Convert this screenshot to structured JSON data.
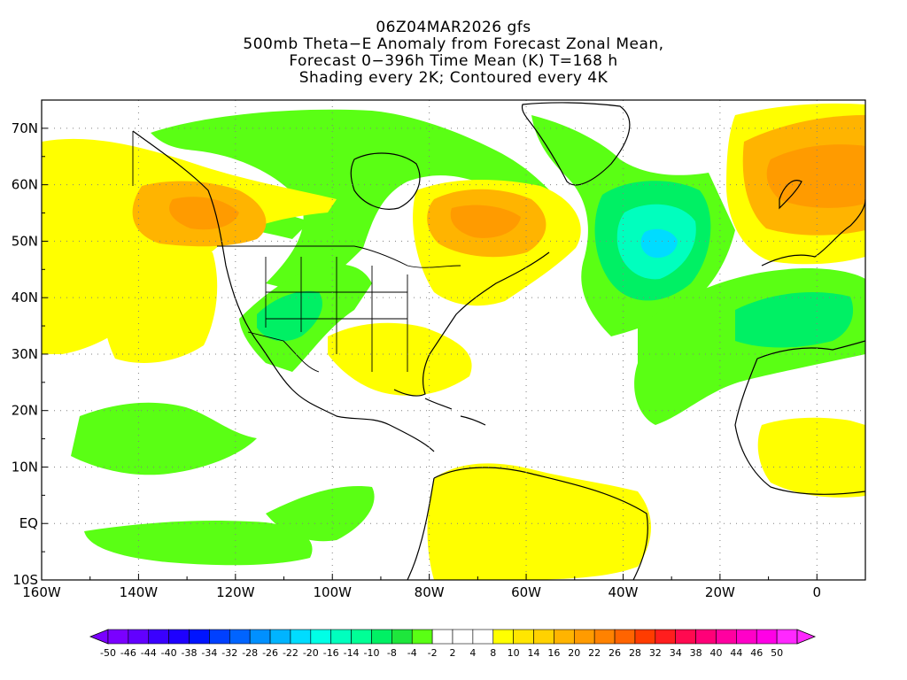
{
  "title": {
    "line1": "06Z04MAR2026 gfs",
    "line2": "500mb Theta−E Anomaly from Forecast Zonal Mean,",
    "line3": "Forecast 0−396h Time Mean (K) T=168 h",
    "line4": "Shading every 2K; Contoured every 4K"
  },
  "map": {
    "lon_range": [
      -160,
      10
    ],
    "lat_range": [
      -10,
      75
    ],
    "lon_ticks": [
      "160W",
      "140W",
      "120W",
      "100W",
      "80W",
      "60W",
      "40W",
      "20W",
      "0"
    ],
    "lat_ticks": [
      "10S",
      "EQ",
      "10N",
      "20N",
      "30N",
      "40N",
      "50N",
      "60N",
      "70N"
    ],
    "gridlines": "dotted"
  },
  "colorbar": {
    "labels": [
      "-50",
      "-46",
      "-44",
      "-40",
      "-38",
      "-34",
      "-32",
      "-28",
      "-26",
      "-22",
      "-20",
      "-16",
      "-14",
      "-10",
      "-8",
      "-4",
      "-2",
      "2",
      "4",
      "8",
      "10",
      "14",
      "16",
      "20",
      "22",
      "26",
      "28",
      "32",
      "34",
      "38",
      "40",
      "44",
      "46",
      "50"
    ],
    "colors": [
      "#7a00ff",
      "#6200ff",
      "#3a00ff",
      "#1e00ff",
      "#0014ff",
      "#0040ff",
      "#0064ff",
      "#0090ff",
      "#00b4ff",
      "#00dcff",
      "#00ffe6",
      "#00ffbe",
      "#00ff96",
      "#00f064",
      "#1ee63c",
      "#5aff14",
      "#ffffff",
      "#ffffff",
      "#ffffff",
      "#ffff00",
      "#ffe600",
      "#ffd200",
      "#ffb400",
      "#ff9b00",
      "#ff8200",
      "#ff6400",
      "#ff3c00",
      "#ff1e1e",
      "#ff0a50",
      "#ff0078",
      "#ff00a0",
      "#ff00c8",
      "#ff00e6",
      "#ff28ff"
    ]
  }
}
